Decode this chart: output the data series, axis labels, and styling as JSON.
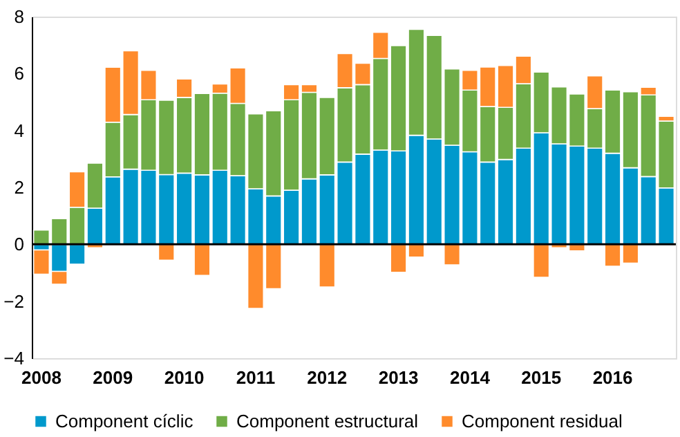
{
  "chart_data": {
    "type": "bar",
    "stacked": true,
    "categories": [
      "2008",
      null,
      null,
      null,
      "2009",
      null,
      null,
      null,
      "2010",
      null,
      null,
      null,
      "2011",
      null,
      null,
      null,
      "2012",
      null,
      null,
      null,
      "2013",
      null,
      null,
      null,
      "2014",
      null,
      null,
      null,
      "2015",
      null,
      null,
      null,
      "2016",
      null,
      null,
      null
    ],
    "series": [
      {
        "name": "Component cíclic",
        "color": "#0099cc",
        "values": [
          -0.2,
          -0.95,
          -0.7,
          1.27,
          2.37,
          2.64,
          2.6,
          2.45,
          2.5,
          2.44,
          2.6,
          2.41,
          1.95,
          1.7,
          1.9,
          2.3,
          2.44,
          2.89,
          3.17,
          3.31,
          3.28,
          3.83,
          3.7,
          3.48,
          3.25,
          2.89,
          2.98,
          3.38,
          3.92,
          3.53,
          3.45,
          3.38,
          3.2,
          2.69,
          2.38,
          1.98
        ]
      },
      {
        "name": "Component estructural",
        "color": "#70ad47",
        "values": [
          0.5,
          0.9,
          1.3,
          1.58,
          1.92,
          1.92,
          2.48,
          2.61,
          2.66,
          2.86,
          2.71,
          2.54,
          2.63,
          2.99,
          3.18,
          3.04,
          2.72,
          2.61,
          2.44,
          3.22,
          3.7,
          3.72,
          3.64,
          2.68,
          2.17,
          1.95,
          1.83,
          2.26,
          2.13,
          2.0,
          1.83,
          1.39,
          2.22,
          2.67,
          2.87,
          2.35
        ]
      },
      {
        "name": "Component residual",
        "color": "#ff8b2c",
        "values": [
          -0.85,
          -0.45,
          1.25,
          -0.12,
          1.93,
          2.24,
          1.03,
          -0.56,
          0.65,
          -1.09,
          0.32,
          1.25,
          -2.25,
          -1.56,
          0.53,
          0.27,
          -1.5,
          1.2,
          0.75,
          0.92,
          -0.98,
          -0.45,
          null,
          -0.72,
          0.69,
          1.39,
          1.47,
          0.97,
          -1.16,
          -0.12,
          -0.23,
          1.15,
          -0.77,
          -0.66,
          0.27,
          0.17
        ]
      }
    ],
    "ylim": [
      -4,
      8
    ],
    "yticks": [
      -4,
      -2,
      0,
      2,
      4,
      6,
      8
    ],
    "grid": false,
    "legend": "bottom",
    "ref_lines": [
      {
        "axis": "y",
        "value": 0,
        "color": "#000000"
      }
    ]
  }
}
